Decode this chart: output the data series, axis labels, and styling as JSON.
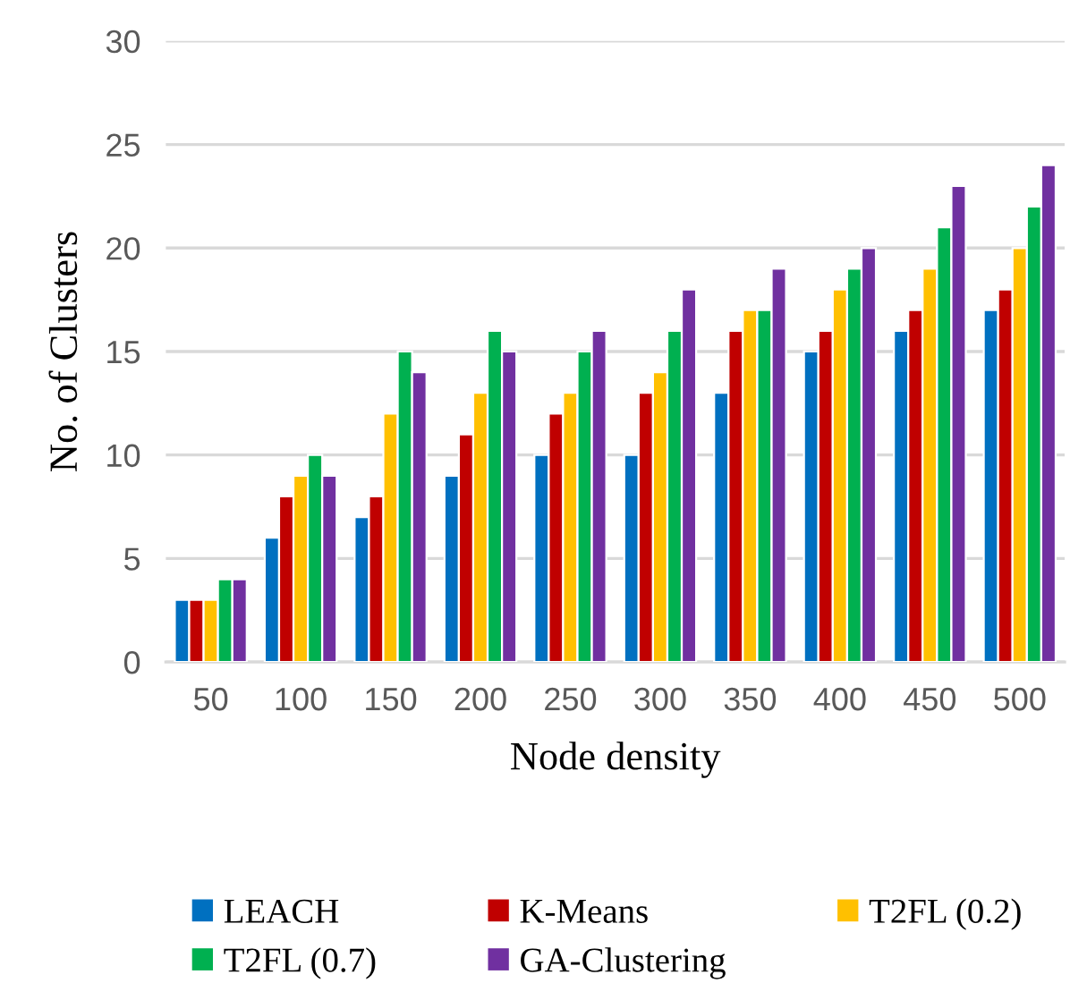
{
  "chart_data": {
    "type": "bar",
    "xlabel": "Node density",
    "ylabel": "No. of Clusters",
    "categories": [
      "50",
      "100",
      "150",
      "200",
      "250",
      "300",
      "350",
      "400",
      "450",
      "500"
    ],
    "series": [
      {
        "name": "LEACH",
        "color": "#0070c0",
        "values": [
          3,
          6,
          7,
          9,
          10,
          10,
          13,
          15,
          16,
          17
        ]
      },
      {
        "name": "K-Means",
        "color": "#c00000",
        "values": [
          3,
          8,
          8,
          11,
          12,
          13,
          16,
          16,
          17,
          18
        ]
      },
      {
        "name": "T2FL (0.2)",
        "color": "#ffc000",
        "values": [
          3,
          9,
          12,
          13,
          13,
          14,
          17,
          18,
          19,
          20
        ]
      },
      {
        "name": "T2FL (0.7)",
        "color": "#00b050",
        "values": [
          4,
          10,
          15,
          16,
          15,
          16,
          17,
          19,
          21,
          22
        ]
      },
      {
        "name": "GA-Clustering",
        "color": "#7030a0",
        "values": [
          4,
          9,
          14,
          15,
          16,
          18,
          19,
          20,
          23,
          24
        ]
      }
    ],
    "ylim": [
      0,
      30
    ],
    "yticks": [
      0,
      5,
      10,
      15,
      20,
      25,
      30
    ],
    "grid": "y",
    "legend": "bottom"
  }
}
